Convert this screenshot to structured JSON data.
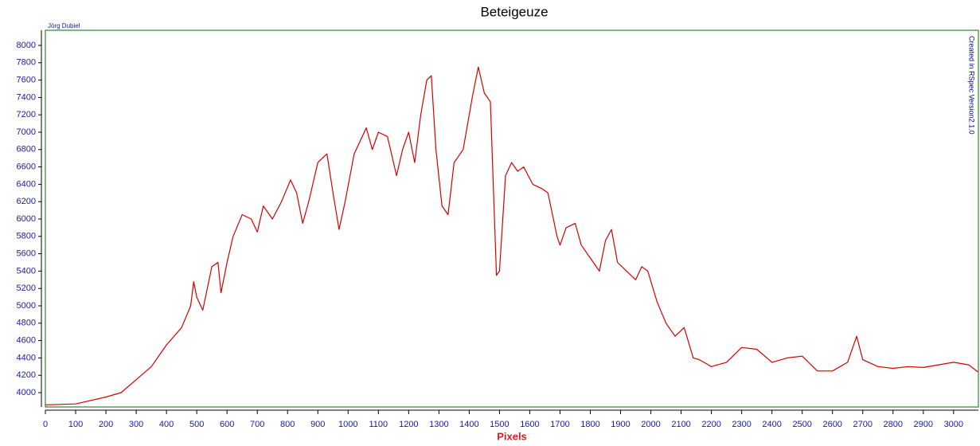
{
  "chart_data": {
    "type": "line",
    "title": "Beteigeuze",
    "x_label": "Pixels",
    "author": "Jörg Dubiel",
    "watermark": "Created in RSpec Version2.1.0",
    "color": "#d40000",
    "x": [
      0,
      100,
      200,
      250,
      300,
      350,
      400,
      450,
      480,
      490,
      500,
      520,
      550,
      570,
      580,
      600,
      620,
      650,
      680,
      700,
      720,
      750,
      780,
      810,
      830,
      850,
      870,
      900,
      930,
      950,
      970,
      990,
      1020,
      1060,
      1080,
      1100,
      1130,
      1160,
      1180,
      1200,
      1220,
      1240,
      1260,
      1275,
      1290,
      1310,
      1330,
      1350,
      1380,
      1410,
      1430,
      1450,
      1470,
      1490,
      1500,
      1520,
      1540,
      1560,
      1580,
      1610,
      1640,
      1660,
      1690,
      1700,
      1720,
      1750,
      1770,
      1800,
      1830,
      1850,
      1870,
      1890,
      1920,
      1950,
      1970,
      1990,
      2020,
      2050,
      2080,
      2110,
      2140,
      2160,
      2200,
      2250,
      2300,
      2350,
      2400,
      2450,
      2500,
      2550,
      2600,
      2650,
      2680,
      2700,
      2750,
      2800,
      2850,
      2900,
      2950,
      3000,
      3050,
      3080
    ],
    "values": [
      3860,
      3870,
      3950,
      4000,
      4150,
      4300,
      4550,
      4750,
      5000,
      5280,
      5100,
      4950,
      5450,
      5500,
      5150,
      5500,
      5800,
      6050,
      6000,
      5850,
      6150,
      6000,
      6200,
      6450,
      6300,
      5950,
      6200,
      6650,
      6750,
      6300,
      5880,
      6200,
      6750,
      7050,
      6800,
      7000,
      6950,
      6500,
      6800,
      7000,
      6650,
      7200,
      7600,
      7650,
      6800,
      6150,
      6050,
      6650,
      6800,
      7400,
      7750,
      7450,
      7350,
      5350,
      5400,
      6500,
      6650,
      6550,
      6600,
      6400,
      6350,
      6300,
      5800,
      5700,
      5900,
      5950,
      5700,
      5550,
      5400,
      5750,
      5880,
      5500,
      5400,
      5300,
      5450,
      5400,
      5050,
      4800,
      4650,
      4750,
      4400,
      4380,
      4300,
      4350,
      4520,
      4500,
      4350,
      4400,
      4420,
      4250,
      4250,
      4350,
      4650,
      4380,
      4300,
      4280,
      4300,
      4290,
      4320,
      4350,
      4320,
      4240
    ],
    "xlim": [
      0,
      3082
    ],
    "ylim": [
      3835,
      8174
    ],
    "xticks": [
      0,
      100,
      200,
      300,
      400,
      500,
      600,
      700,
      800,
      900,
      1000,
      1100,
      1200,
      1300,
      1400,
      1500,
      1600,
      1700,
      1800,
      1900,
      2000,
      2100,
      2200,
      2300,
      2400,
      2500,
      2600,
      2700,
      2800,
      2900,
      3000
    ],
    "yticks": [
      4000,
      4200,
      4400,
      4600,
      4800,
      5000,
      5200,
      5400,
      5600,
      5800,
      6000,
      6200,
      6400,
      6600,
      6800,
      7000,
      7200,
      7400,
      7600,
      7800,
      8000
    ]
  }
}
